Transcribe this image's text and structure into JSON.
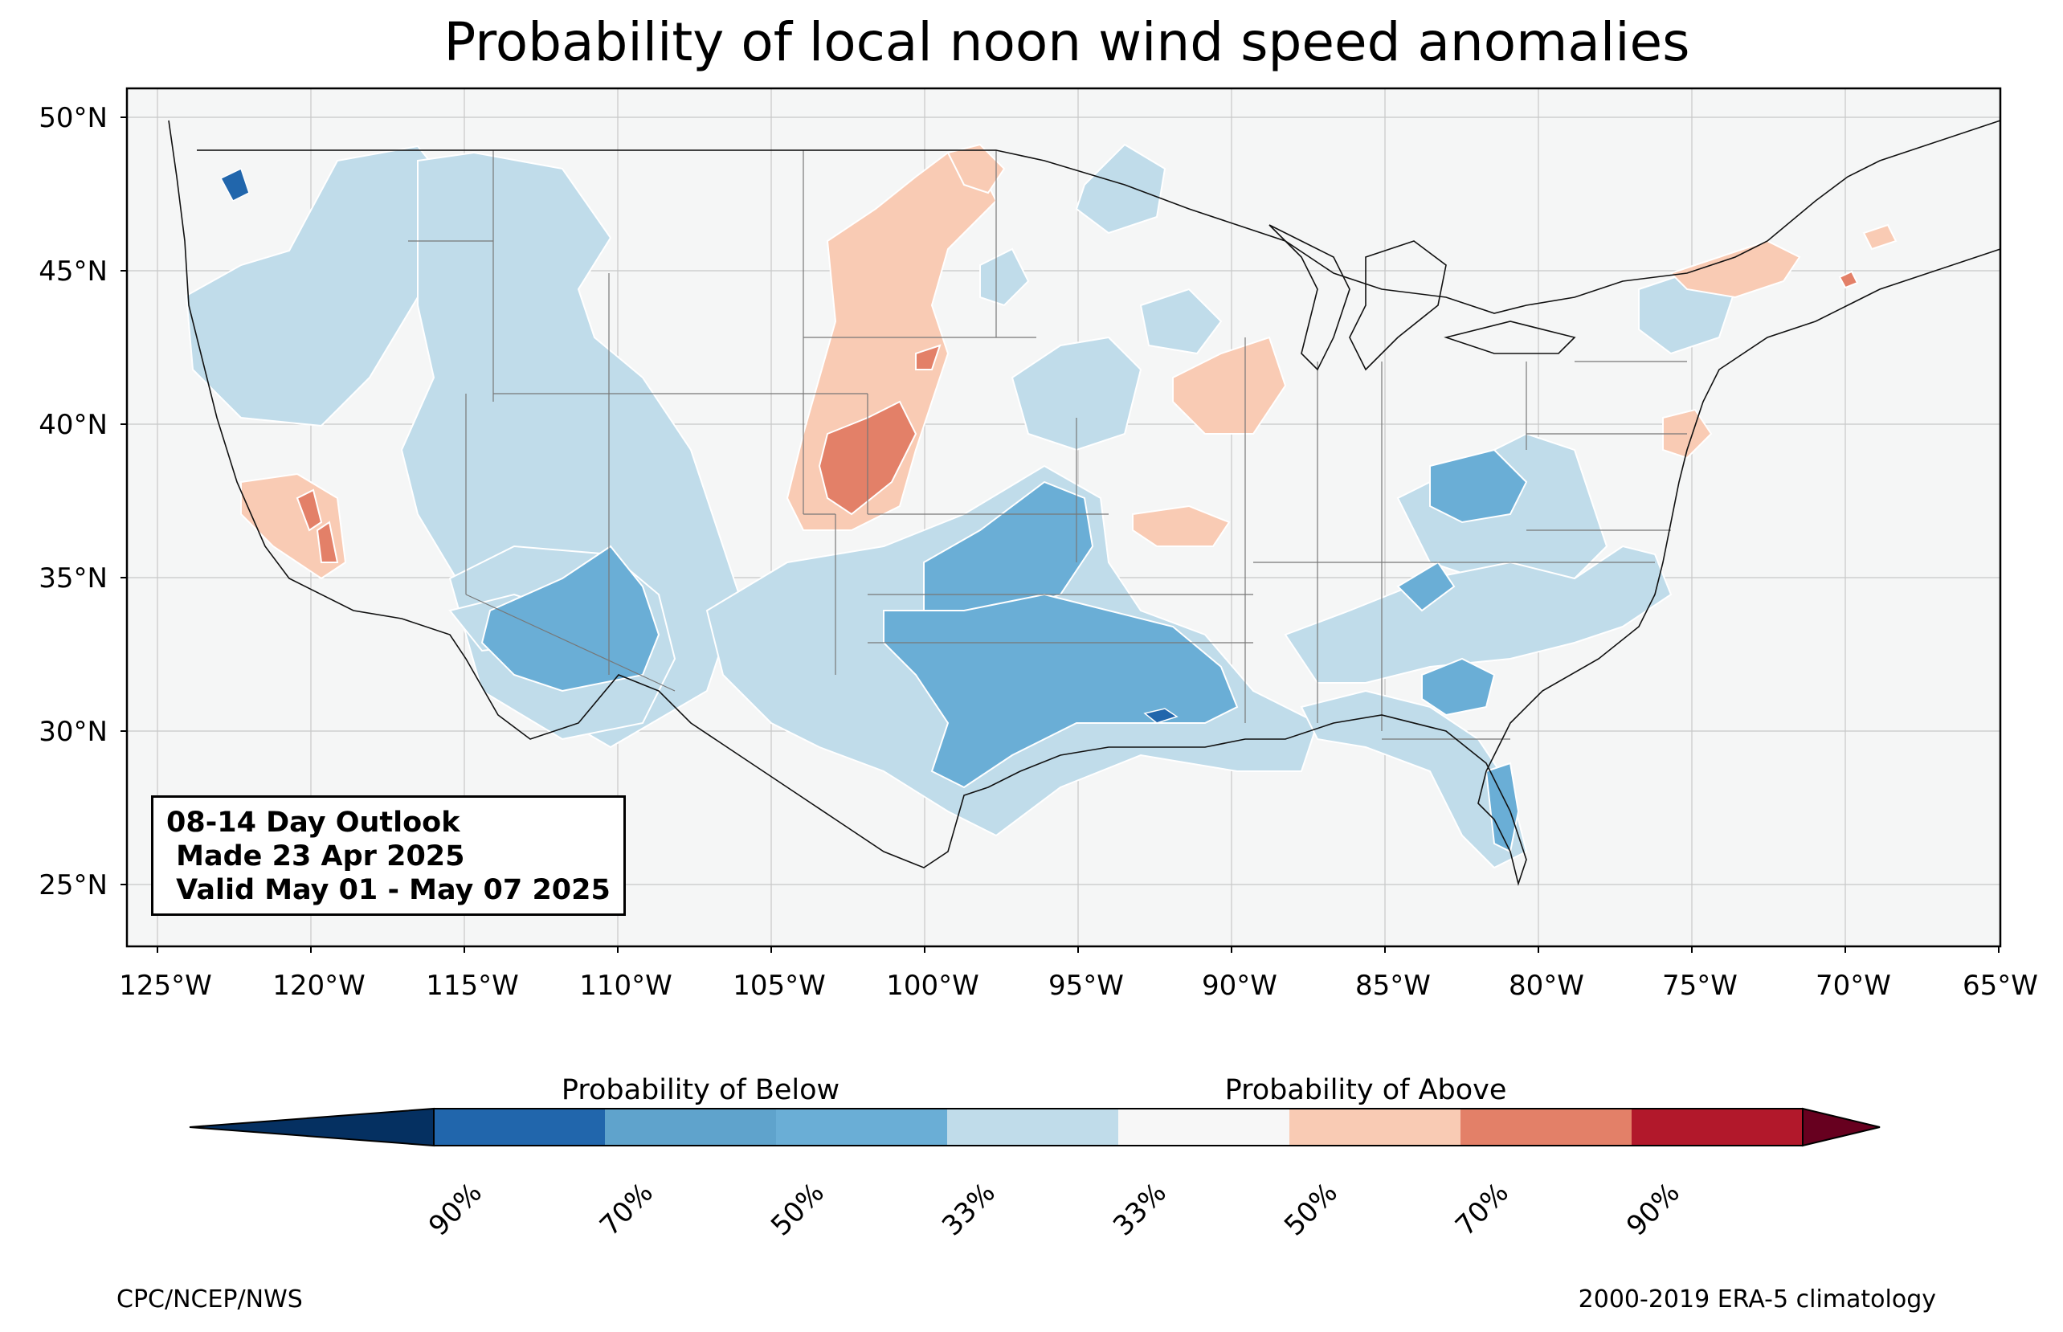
{
  "title": "Probability of local noon wind speed anomalies",
  "map": {
    "region": "Contiguous United States",
    "projection": "Plate Carree",
    "lon_range": [
      -126,
      -65
    ],
    "lat_range": [
      23,
      51
    ],
    "lat_ticks": [
      "25°N",
      "30°N",
      "35°N",
      "40°N",
      "45°N",
      "50°N"
    ],
    "lon_ticks": [
      "125°W",
      "120°W",
      "115°W",
      "110°W",
      "105°W",
      "100°W",
      "95°W",
      "90°W",
      "85°W",
      "80°W",
      "75°W",
      "70°W",
      "65°W"
    ],
    "ocean_color": "#f5f6f6",
    "gridlines": true
  },
  "outlook": {
    "line1": "08-14 Day Outlook",
    "line2": " Made 23 Apr 2025",
    "line3": " Valid May 01 - May 07 2025"
  },
  "legend": {
    "below_label": "Probability of Below",
    "above_label": "Probability of Above",
    "tick_labels": [
      "90%",
      "70%",
      "50%",
      "33%",
      "33%",
      "50%",
      "70%",
      "90%"
    ],
    "colors": [
      "#053061",
      "#2166ac",
      "#4393c3",
      "#92c5de",
      "#d1e5f0",
      "#f7f7f7",
      "#fddbc7",
      "#f4a582",
      "#d6604d",
      "#b2182b",
      "#67001f"
    ],
    "bins": [
      "below >90%",
      "below 70-90%",
      "below 50-70%",
      "below 33-50%",
      "near normal",
      "above 33-50%",
      "above 50-70%",
      "above 70-90%",
      "above >90%"
    ]
  },
  "credits": {
    "left": "CPC/NCEP/NWS",
    "right": "2000-2019 ERA-5 climatology"
  }
}
